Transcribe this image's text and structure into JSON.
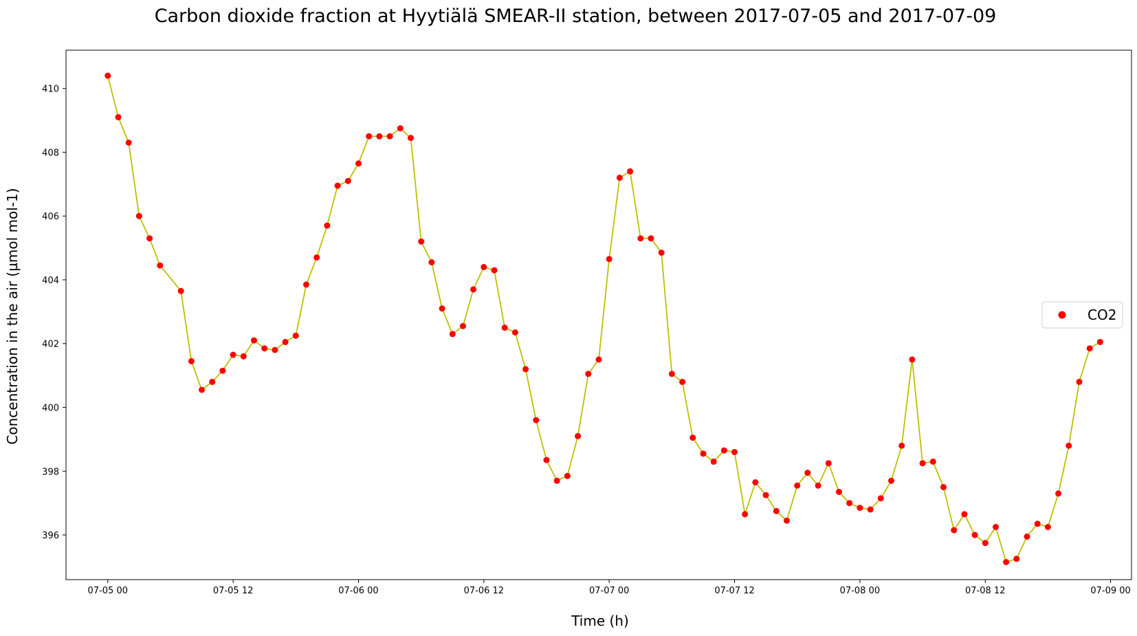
{
  "chart_data": {
    "type": "line",
    "title": "Carbon dioxide fraction at Hyytiälä SMEAR-II station, between 2017-07-05 and 2017-07-09",
    "xlabel": "Time (h)",
    "ylabel": "Concentration in the air (µmol mol-1)",
    "x_ticks": [
      "07-05 00",
      "07-05 12",
      "07-06 00",
      "07-06 12",
      "07-07 00",
      "07-07 12",
      "07-08 00",
      "07-08 12",
      "07-09 00"
    ],
    "y_ticks": [
      "396",
      "398",
      "400",
      "402",
      "404",
      "406",
      "408",
      "410"
    ],
    "xlim": [
      "2017-07-04 20:00",
      "2017-07-09 02:00"
    ],
    "ylim": [
      394.6,
      411.2
    ],
    "grid": false,
    "legend_position": "center-right",
    "line_color": "#bfbf00",
    "marker_color": "#ff0000",
    "series": [
      {
        "name": "CO2",
        "points": [
          [
            "2017-07-05 00:00",
            410.4
          ],
          [
            "2017-07-05 01:00",
            409.1
          ],
          [
            "2017-07-05 02:00",
            408.3
          ],
          [
            "2017-07-05 03:00",
            406.0
          ],
          [
            "2017-07-05 04:00",
            405.3
          ],
          [
            "2017-07-05 05:00",
            404.45
          ],
          [
            "2017-07-05 07:00",
            403.65
          ],
          [
            "2017-07-05 08:00",
            401.45
          ],
          [
            "2017-07-05 09:00",
            400.55
          ],
          [
            "2017-07-05 10:00",
            400.8
          ],
          [
            "2017-07-05 11:00",
            401.15
          ],
          [
            "2017-07-05 12:00",
            401.65
          ],
          [
            "2017-07-05 13:00",
            401.6
          ],
          [
            "2017-07-05 14:00",
            402.1
          ],
          [
            "2017-07-05 15:00",
            401.85
          ],
          [
            "2017-07-05 16:00",
            401.8
          ],
          [
            "2017-07-05 17:00",
            402.05
          ],
          [
            "2017-07-05 18:00",
            402.25
          ],
          [
            "2017-07-05 19:00",
            403.85
          ],
          [
            "2017-07-05 20:00",
            404.7
          ],
          [
            "2017-07-05 21:00",
            405.7
          ],
          [
            "2017-07-05 22:00",
            406.95
          ],
          [
            "2017-07-05 23:00",
            407.1
          ],
          [
            "2017-07-06 00:00",
            407.65
          ],
          [
            "2017-07-06 01:00",
            408.5
          ],
          [
            "2017-07-06 02:00",
            408.5
          ],
          [
            "2017-07-06 03:00",
            408.5
          ],
          [
            "2017-07-06 04:00",
            408.75
          ],
          [
            "2017-07-06 05:00",
            408.45
          ],
          [
            "2017-07-06 06:00",
            405.2
          ],
          [
            "2017-07-06 07:00",
            404.55
          ],
          [
            "2017-07-06 08:00",
            403.1
          ],
          [
            "2017-07-06 09:00",
            402.3
          ],
          [
            "2017-07-06 10:00",
            402.55
          ],
          [
            "2017-07-06 11:00",
            403.7
          ],
          [
            "2017-07-06 12:00",
            404.4
          ],
          [
            "2017-07-06 13:00",
            404.3
          ],
          [
            "2017-07-06 14:00",
            402.5
          ],
          [
            "2017-07-06 15:00",
            402.35
          ],
          [
            "2017-07-06 16:00",
            401.2
          ],
          [
            "2017-07-06 17:00",
            399.6
          ],
          [
            "2017-07-06 18:00",
            398.35
          ],
          [
            "2017-07-06 19:00",
            397.7
          ],
          [
            "2017-07-06 20:00",
            397.85
          ],
          [
            "2017-07-06 21:00",
            399.1
          ],
          [
            "2017-07-06 22:00",
            401.05
          ],
          [
            "2017-07-06 23:00",
            401.5
          ],
          [
            "2017-07-07 00:00",
            404.65
          ],
          [
            "2017-07-07 01:00",
            407.2
          ],
          [
            "2017-07-07 02:00",
            407.4
          ],
          [
            "2017-07-07 03:00",
            405.3
          ],
          [
            "2017-07-07 04:00",
            405.3
          ],
          [
            "2017-07-07 05:00",
            404.85
          ],
          [
            "2017-07-07 06:00",
            401.05
          ],
          [
            "2017-07-07 07:00",
            400.8
          ],
          [
            "2017-07-07 08:00",
            399.05
          ],
          [
            "2017-07-07 09:00",
            398.55
          ],
          [
            "2017-07-07 10:00",
            398.3
          ],
          [
            "2017-07-07 11:00",
            398.65
          ],
          [
            "2017-07-07 12:00",
            398.6
          ],
          [
            "2017-07-07 13:00",
            396.65
          ],
          [
            "2017-07-07 14:00",
            397.65
          ],
          [
            "2017-07-07 15:00",
            397.25
          ],
          [
            "2017-07-07 16:00",
            396.75
          ],
          [
            "2017-07-07 17:00",
            396.45
          ],
          [
            "2017-07-07 18:00",
            397.55
          ],
          [
            "2017-07-07 19:00",
            397.95
          ],
          [
            "2017-07-07 20:00",
            397.55
          ],
          [
            "2017-07-07 21:00",
            398.25
          ],
          [
            "2017-07-07 22:00",
            397.35
          ],
          [
            "2017-07-07 23:00",
            397.0
          ],
          [
            "2017-07-08 00:00",
            396.85
          ],
          [
            "2017-07-08 01:00",
            396.8
          ],
          [
            "2017-07-08 02:00",
            397.15
          ],
          [
            "2017-07-08 03:00",
            397.7
          ],
          [
            "2017-07-08 04:00",
            398.8
          ],
          [
            "2017-07-08 05:00",
            401.5
          ],
          [
            "2017-07-08 06:00",
            398.25
          ],
          [
            "2017-07-08 07:00",
            398.3
          ],
          [
            "2017-07-08 08:00",
            397.5
          ],
          [
            "2017-07-08 09:00",
            396.15
          ],
          [
            "2017-07-08 10:00",
            396.65
          ],
          [
            "2017-07-08 11:00",
            396.0
          ],
          [
            "2017-07-08 12:00",
            395.75
          ],
          [
            "2017-07-08 13:00",
            396.25
          ],
          [
            "2017-07-08 14:00",
            395.15
          ],
          [
            "2017-07-08 15:00",
            395.25
          ],
          [
            "2017-07-08 16:00",
            395.95
          ],
          [
            "2017-07-08 17:00",
            396.35
          ],
          [
            "2017-07-08 18:00",
            396.25
          ],
          [
            "2017-07-08 19:00",
            397.3
          ],
          [
            "2017-07-08 20:00",
            398.8
          ],
          [
            "2017-07-08 21:00",
            400.8
          ],
          [
            "2017-07-08 22:00",
            401.85
          ],
          [
            "2017-07-08 23:00",
            402.05
          ]
        ]
      }
    ]
  }
}
